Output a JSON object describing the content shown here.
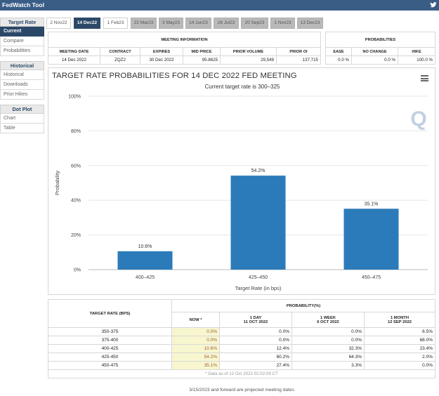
{
  "app": {
    "title": "FedWatch Tool"
  },
  "sidebar": {
    "groups": [
      {
        "title": "Target Rate",
        "items": [
          {
            "label": "Current",
            "active": true
          },
          {
            "label": "Compare",
            "active": false
          },
          {
            "label": "Probabilities",
            "active": false
          }
        ]
      },
      {
        "title": "Historical",
        "items": [
          {
            "label": "Historical",
            "active": false
          },
          {
            "label": "Downloads",
            "active": false
          },
          {
            "label": "Prior Hikes",
            "active": false
          }
        ]
      },
      {
        "title": "Dot Plot",
        "items": [
          {
            "label": "Chart",
            "active": false
          },
          {
            "label": "Table",
            "active": false
          }
        ]
      }
    ]
  },
  "tabs": [
    {
      "label": "2 Nov22",
      "state": "normal"
    },
    {
      "label": "14 Dec22",
      "state": "active"
    },
    {
      "label": "1 Feb23",
      "state": "normal"
    },
    {
      "label": "22 Mar23",
      "state": "grey"
    },
    {
      "label": "3 May23",
      "state": "grey"
    },
    {
      "label": "14 Jun23",
      "state": "grey"
    },
    {
      "label": "26 Jul23",
      "state": "grey"
    },
    {
      "label": "20 Sep23",
      "state": "grey"
    },
    {
      "label": "1 Nov23",
      "state": "grey"
    },
    {
      "label": "13 Dec23",
      "state": "grey"
    }
  ],
  "meeting_info": {
    "title": "MEETING INFORMATION",
    "headers": [
      "MEETING DATE",
      "CONTRACT",
      "EXPIRES",
      "MID PRICE",
      "PRIOR VOLUME",
      "PRIOR OI"
    ],
    "values": [
      "14 Dec 2022",
      "ZQZ2",
      "30 Dec 2022",
      "95.8625",
      "29,549",
      "137,715"
    ]
  },
  "probabilities_box": {
    "title": "PROBABILITIES",
    "headers": [
      "EASE",
      "NO CHANGE",
      "HIKE"
    ],
    "values": [
      "0.0 %",
      "0.0 %",
      "100.0 %"
    ]
  },
  "chart": {
    "title": "TARGET RATE PROBABILITIES FOR 14 DEC 2022 FED MEETING",
    "subtitle": "Current target rate is 300–325",
    "watermark": "Q",
    "menu_icon": "hamburger-menu-icon"
  },
  "chart_data": {
    "type": "bar",
    "categories": [
      "400–425",
      "425–450",
      "450–475"
    ],
    "values": [
      10.6,
      54.2,
      35.1
    ],
    "data_labels": [
      "10.6%",
      "54.2%",
      "35.1%"
    ],
    "title": "TARGET RATE PROBABILITIES FOR 14 DEC 2022 FED MEETING",
    "subtitle": "Current target rate is 300–325",
    "xlabel": "Target Rate (in bps)",
    "ylabel": "Probability",
    "ylim": [
      0,
      100
    ],
    "yticks": [
      0,
      20,
      40,
      60,
      80,
      100
    ],
    "ytick_labels": [
      "0%",
      "20%",
      "40%",
      "60%",
      "80%",
      "100%"
    ],
    "grid": true,
    "legend": "none",
    "color": "#2b7bba"
  },
  "prob_table": {
    "col1_header": "TARGET RATE (BPS)",
    "group_header": "PROBABILITY(%)",
    "columns": [
      {
        "title": "NOW *",
        "sub": ""
      },
      {
        "title": "1 DAY",
        "sub": "11 OCT 2022"
      },
      {
        "title": "1 WEEK",
        "sub": "6 OCT 2022"
      },
      {
        "title": "1 MONTH",
        "sub": "12 SEP 2022"
      }
    ],
    "rows": [
      {
        "rate": "350-375",
        "now": "0.0%",
        "day": "0.0%",
        "week": "0.0%",
        "month": "6.5%"
      },
      {
        "rate": "375-400",
        "now": "0.0%",
        "day": "0.0%",
        "week": "0.0%",
        "month": "68.0%"
      },
      {
        "rate": "400-425",
        "now": "10.6%",
        "day": "12.4%",
        "week": "32.3%",
        "month": "23.4%"
      },
      {
        "rate": "425-450",
        "now": "54.2%",
        "day": "60.2%",
        "week": "64.3%",
        "month": "2.0%"
      },
      {
        "rate": "450-475",
        "now": "35.1%",
        "day": "27.4%",
        "week": "3.3%",
        "month": "0.0%"
      }
    ],
    "footnote": "* Data as of 12 Oct 2022 01:02:09 CT"
  },
  "bottom_note": "3/15/2023 and forward are projected meeting dates"
}
